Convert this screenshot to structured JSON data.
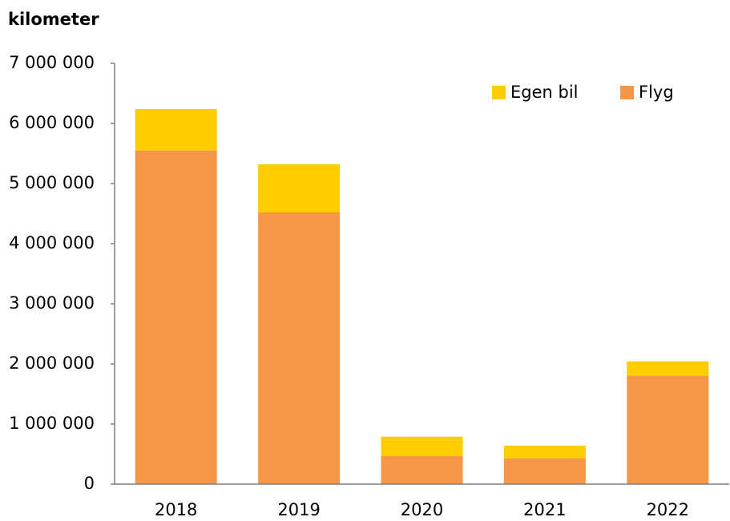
{
  "chart_data": {
    "type": "stacked_bar",
    "y_label": "kilometer",
    "categories": [
      "2018",
      "2019",
      "2020",
      "2021",
      "2022"
    ],
    "series": [
      {
        "name": "Egen bil",
        "color": "#ffcc00",
        "values": [
          690000,
          800000,
          320000,
          210000,
          240000
        ]
      },
      {
        "name": "Flyg",
        "color": "#f79646",
        "values": [
          5550000,
          4520000,
          470000,
          430000,
          1800000
        ]
      }
    ],
    "ylim": [
      0,
      7000000
    ],
    "yticks": [
      0,
      {
        "value": 1000000,
        "label": "1 000 000"
      },
      {
        "value": 2000000,
        "label": "2 000 000"
      },
      {
        "value": 3000000,
        "label": "3 000 000"
      },
      {
        "value": 4000000,
        "label": "4 000 000"
      },
      {
        "value": 5000000,
        "label": "5 000 000"
      },
      {
        "value": 6000000,
        "label": "6 000 000"
      },
      {
        "value": 7000000,
        "label": "7 000 000"
      }
    ],
    "legend": "top-right",
    "grid": false
  }
}
